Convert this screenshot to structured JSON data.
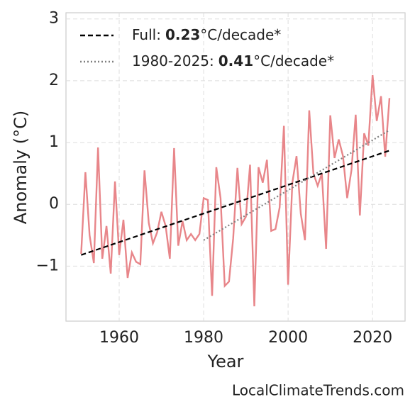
{
  "chart_data": {
    "type": "line",
    "xlabel": "Year",
    "ylabel": "Anomaly (°C)",
    "source": "LocalClimateTrends.com",
    "xlim": [
      1947.4,
      2027.7
    ],
    "xticks": [
      1960,
      1980,
      2000,
      2020
    ],
    "ylim": [
      -1.89,
      3.1
    ],
    "yticks": [
      {
        "value": -1,
        "label": "−1"
      },
      0,
      1,
      2,
      3
    ],
    "grid": true,
    "legend": "upper left",
    "series": [
      {
        "name": "Anomaly",
        "color": "#e8868a",
        "style": "solid",
        "x": [
          1951,
          1952,
          1953,
          1954,
          1955,
          1956,
          1957,
          1958,
          1959,
          1960,
          1961,
          1962,
          1963,
          1964,
          1965,
          1966,
          1967,
          1968,
          1969,
          1970,
          1971,
          1972,
          1973,
          1974,
          1975,
          1976,
          1977,
          1978,
          1979,
          1980,
          1981,
          1982,
          1983,
          1984,
          1985,
          1986,
          1987,
          1988,
          1989,
          1990,
          1991,
          1992,
          1993,
          1994,
          1995,
          1996,
          1997,
          1998,
          1999,
          2000,
          2001,
          2002,
          2003,
          2004,
          2005,
          2006,
          2007,
          2008,
          2009,
          2010,
          2011,
          2012,
          2013,
          2014,
          2015,
          2016,
          2017,
          2018,
          2019,
          2020,
          2021,
          2022,
          2023,
          2024
        ],
        "values": [
          -0.8,
          0.52,
          -0.5,
          -0.95,
          0.92,
          -0.88,
          -0.35,
          -1.12,
          0.37,
          -0.82,
          -0.25,
          -1.19,
          -0.78,
          -0.93,
          -0.97,
          0.55,
          -0.3,
          -0.63,
          -0.45,
          -0.12,
          -0.35,
          -0.88,
          0.91,
          -0.67,
          -0.27,
          -0.58,
          -0.48,
          -0.58,
          -0.48,
          0.1,
          0.07,
          -1.48,
          0.6,
          0.1,
          -1.32,
          -1.25,
          -0.55,
          0.59,
          -0.32,
          -0.2,
          0.64,
          -1.65,
          0.6,
          0.35,
          0.72,
          -0.43,
          -0.4,
          -0.05,
          1.27,
          -1.3,
          0.35,
          0.78,
          -0.15,
          -0.58,
          1.52,
          0.5,
          0.3,
          0.5,
          -0.72,
          1.44,
          0.75,
          1.05,
          0.78,
          0.1,
          0.55,
          1.45,
          -0.18,
          1.15,
          0.95,
          2.09,
          1.35,
          1.75,
          0.77,
          1.72
        ]
      },
      {
        "name": "Full:",
        "slope": 0.23,
        "unit": "°C/decade*",
        "color": "#000000",
        "style": "dashed",
        "x": [
          1951,
          2024
        ],
        "values": [
          -0.82,
          0.87
        ]
      },
      {
        "name": "1980-2025:",
        "slope": 0.41,
        "unit": "°C/decade*",
        "color": "#808080",
        "style": "dotted",
        "x": [
          1980,
          2024
        ],
        "values": [
          -0.58,
          1.2
        ]
      }
    ]
  }
}
